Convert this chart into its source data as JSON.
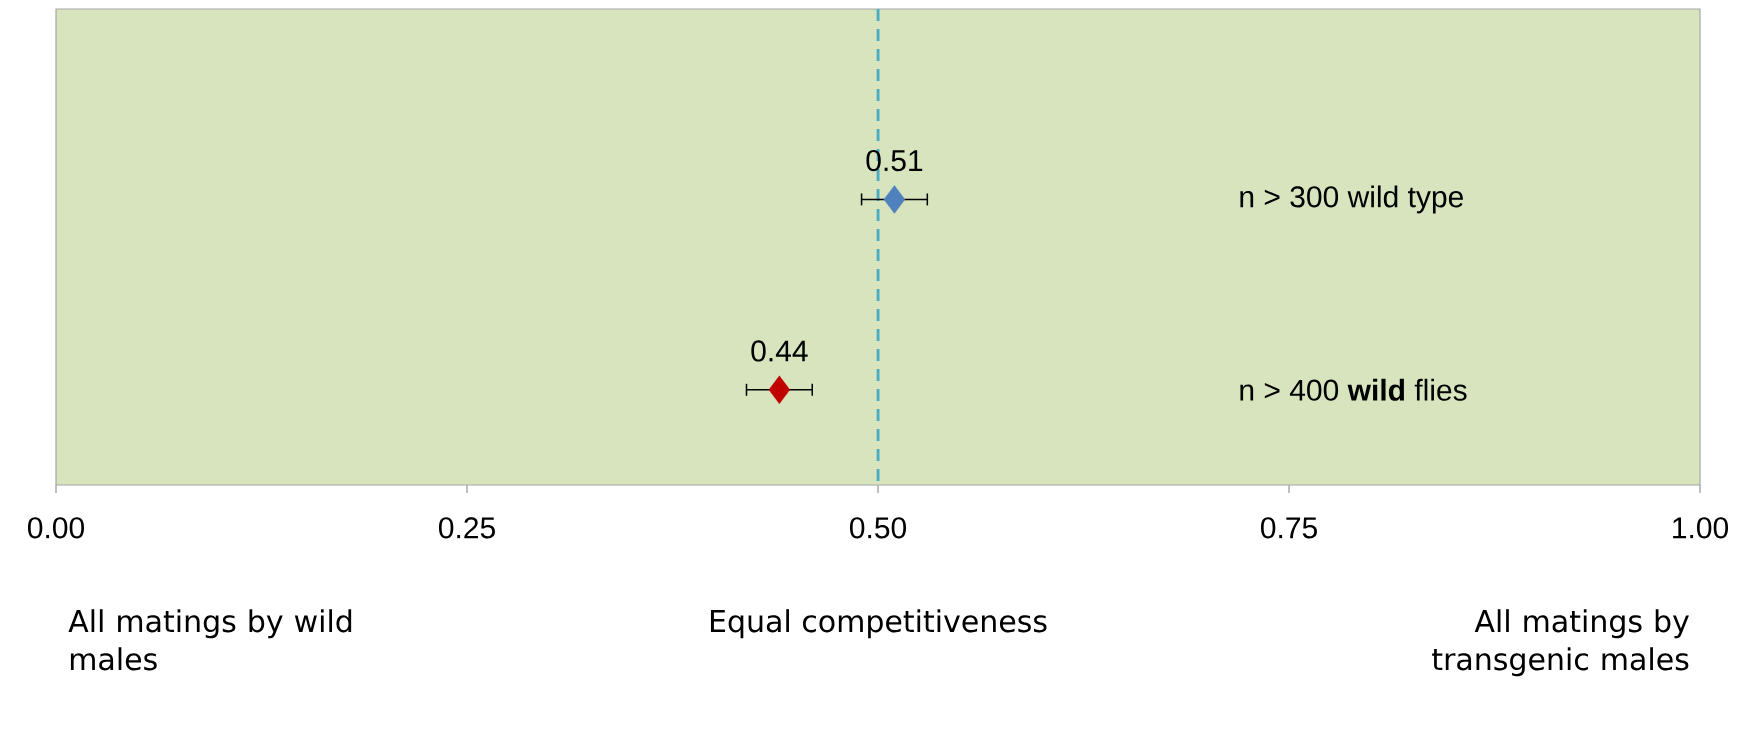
{
  "chart_data": {
    "type": "scatter",
    "orientation": "horizontal",
    "categories": [
      null,
      null
    ],
    "values": [
      0.51,
      0.44
    ],
    "errors": [
      0.02,
      0.02
    ],
    "colors": [
      "#4f81bd",
      "#c00000"
    ],
    "marker": "diamond",
    "value_labels": [
      "0.51",
      "0.44"
    ],
    "xlim": [
      0,
      1
    ],
    "xticks": [
      {
        "value": 0,
        "label": "0.00"
      },
      {
        "value": 0.25,
        "label": "0.25"
      },
      {
        "value": 0.5,
        "label": "0.50"
      },
      {
        "value": 0.75,
        "label": "0.75"
      },
      {
        "value": 1,
        "label": "1.00"
      }
    ],
    "ref_lines": [
      {
        "axis": "x",
        "value": 0.5,
        "color": "#4bacc6",
        "line_style": "dashed"
      }
    ],
    "annotations": [
      "n > 300   wild type",
      "n > 400   **wild** flies",
      "All matings by wild males",
      "Equal competitiveness",
      "All matings by transgenic males"
    ],
    "grid": false
  }
}
